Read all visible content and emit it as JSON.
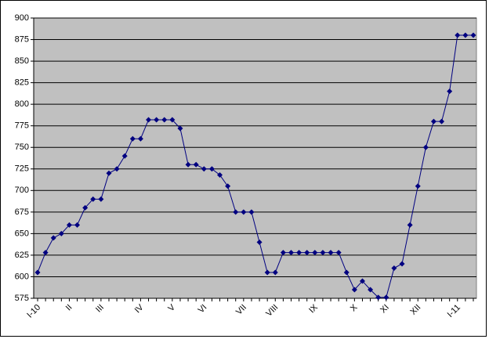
{
  "chart_data": {
    "type": "line",
    "categories": [
      "I-10",
      null,
      null,
      null,
      "II",
      null,
      null,
      null,
      "III",
      null,
      null,
      null,
      null,
      "IV",
      null,
      null,
      null,
      "V",
      null,
      null,
      null,
      "VI",
      null,
      null,
      null,
      null,
      "VII",
      null,
      null,
      null,
      "VIII",
      null,
      null,
      null,
      null,
      "IX",
      null,
      null,
      null,
      null,
      "X",
      null,
      null,
      null,
      "XI",
      null,
      null,
      null,
      "XII",
      null,
      null,
      null,
      null,
      "I-11",
      null,
      null
    ],
    "values": [
      605,
      628,
      645,
      650,
      660,
      660,
      680,
      690,
      690,
      720,
      725,
      740,
      760,
      760,
      782,
      782,
      782,
      782,
      772,
      730,
      730,
      725,
      725,
      718,
      705,
      675,
      675,
      675,
      640,
      605,
      605,
      628,
      628,
      628,
      628,
      628,
      628,
      628,
      628,
      605,
      585,
      595,
      585,
      576,
      576,
      610,
      615,
      660,
      705,
      750,
      780,
      780,
      815,
      880,
      880,
      880
    ],
    "color": "#000080",
    "ylim": [
      575,
      900
    ],
    "yticks": [
      575,
      600,
      625,
      650,
      675,
      700,
      725,
      750,
      775,
      800,
      825,
      850,
      875,
      900
    ],
    "grid": true,
    "plot_background": "#c0c0c0"
  }
}
